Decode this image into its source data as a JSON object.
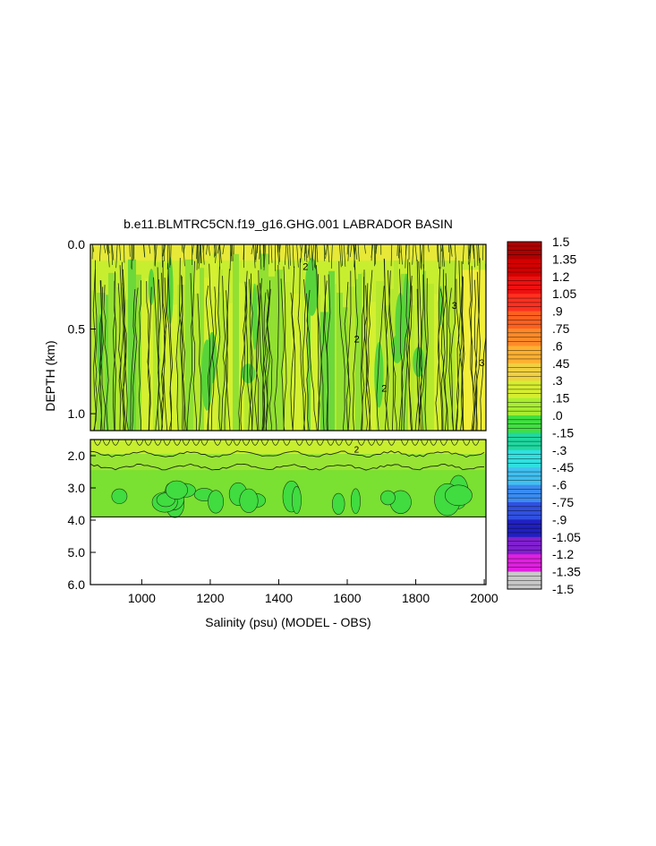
{
  "chart_data": {
    "type": "heatmap",
    "title": "b.e11.BLMTRC5CN.f19_g16.GHG.001 LABRADOR BASIN",
    "xlabel": "Salinity (psu) (MODEL - OBS)",
    "ylabel": "DEPTH (km)",
    "xlim": [
      850,
      2005
    ],
    "x_ticks": [
      "1000",
      "1200",
      "1400",
      "1600",
      "1800",
      "2000"
    ],
    "x_tick_values": [
      1000,
      1200,
      1400,
      1600,
      1800,
      2000
    ],
    "upper_panel": {
      "ylim": [
        0.0,
        1.1
      ],
      "y_ticks": [
        "0.0",
        "0.5",
        "1.0"
      ],
      "y_tick_values": [
        0.0,
        0.5,
        1.0
      ]
    },
    "lower_panel": {
      "ylim": [
        1.5,
        6.0
      ],
      "y_ticks": [
        "2.0",
        "3.0",
        "4.0",
        "5.0",
        "6.0"
      ],
      "y_tick_values": [
        2.0,
        3.0,
        4.0,
        5.0,
        6.0
      ],
      "data_bottom_depth": 3.9
    },
    "contour_labels": [
      "3",
      "2"
    ],
    "field_profile": [
      {
        "depth": 0.0,
        "value": 0.45
      },
      {
        "depth": 0.1,
        "value": 0.3
      },
      {
        "depth": 0.3,
        "value": 0.3
      },
      {
        "depth": 1.1,
        "value": 0.3
      },
      {
        "depth": 1.9,
        "value": 0.2
      },
      {
        "depth": 2.5,
        "value": 0.1
      },
      {
        "depth": 3.9,
        "value": 0.05
      }
    ],
    "colorbar": {
      "labels": [
        "1.5",
        "1.35",
        "1.2",
        "1.05",
        ".9",
        ".75",
        ".6",
        ".45",
        ".3",
        ".15",
        ".0",
        "-.15",
        "-.3",
        "-.45",
        "-.6",
        "-.75",
        "-.9",
        "-1.05",
        "-1.2",
        "-1.35",
        "-1.5"
      ],
      "colors": [
        "#b00000",
        "#d40000",
        "#ee1010",
        "#ff3020",
        "#ff6020",
        "#ff8a28",
        "#ffb030",
        "#f0d040",
        "#d6ee30",
        "#a8ee30",
        "#40e040",
        "#20d8a0",
        "#30e0e0",
        "#40c0f0",
        "#3a8cf0",
        "#3050e0",
        "#2020c0",
        "#8020d0",
        "#e020e0",
        "#c8c8c8",
        "#909090"
      ]
    }
  }
}
